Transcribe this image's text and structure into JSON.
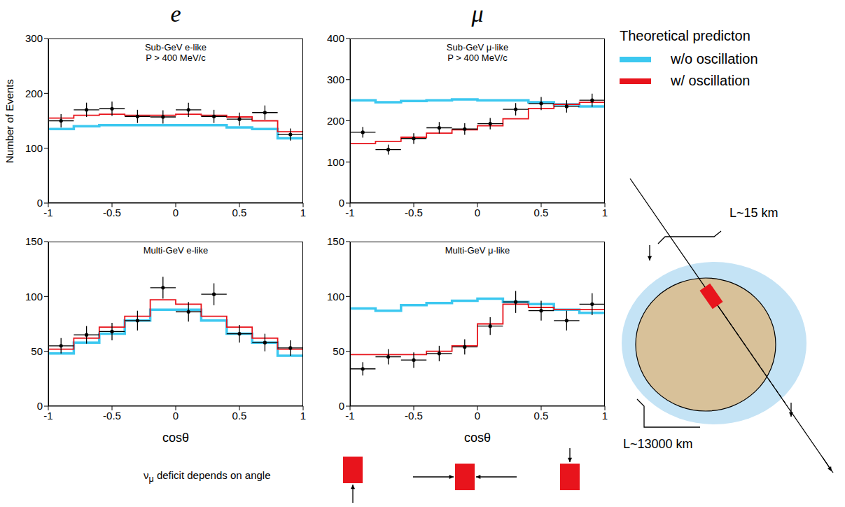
{
  "columns": [
    "e",
    "μ"
  ],
  "legend_title": "Theoretical predicton",
  "chart_data": [
    {
      "type": "step",
      "title": "Sub-GeV e-like",
      "subtitle": "P > 400 MeV/c",
      "y_label": "Number of Events",
      "bins": [
        -1,
        -0.8,
        -0.6,
        -0.4,
        -0.2,
        0,
        0.2,
        0.4,
        0.6,
        0.8,
        1
      ],
      "xlim": [
        -1,
        1
      ],
      "xticks": [
        -1,
        -0.5,
        0,
        0.5,
        1
      ],
      "ylim": [
        0,
        300
      ],
      "yticks": [
        0,
        100,
        200,
        300
      ],
      "data_points": {
        "color": "#000000",
        "values": [
          150,
          170,
          172,
          158,
          157,
          170,
          158,
          153,
          165,
          125
        ],
        "errors": [
          12,
          13,
          13,
          12,
          12,
          13,
          12,
          12,
          13,
          11
        ]
      },
      "series": [
        {
          "name": "w/o oscillation",
          "color": "#3cc8f0",
          "values": [
            135,
            140,
            142,
            142,
            142,
            142,
            142,
            138,
            135,
            118
          ]
        },
        {
          "name": "w/ oscillation",
          "color": "#e8141c",
          "values": [
            155,
            160,
            162,
            160,
            160,
            162,
            160,
            157,
            150,
            130
          ]
        }
      ]
    },
    {
      "type": "step",
      "title": "Sub-GeV μ-like",
      "subtitle": "P > 400 MeV/c",
      "bins": [
        -1,
        -0.8,
        -0.6,
        -0.4,
        -0.2,
        0,
        0.2,
        0.4,
        0.6,
        0.8,
        1
      ],
      "xlim": [
        -1,
        1
      ],
      "xticks": [
        -1,
        -0.5,
        0,
        0.5,
        1
      ],
      "ylim": [
        0,
        400
      ],
      "yticks": [
        0,
        100,
        200,
        300,
        400
      ],
      "data_points": {
        "color": "#000000",
        "values": [
          172,
          130,
          157,
          183,
          180,
          193,
          228,
          242,
          235,
          250
        ],
        "errors": [
          13,
          12,
          13,
          14,
          14,
          14,
          15,
          16,
          15,
          16
        ]
      },
      "series": [
        {
          "name": "w/o oscillation",
          "color": "#3cc8f0",
          "values": [
            250,
            245,
            248,
            250,
            252,
            250,
            250,
            245,
            240,
            235
          ]
        },
        {
          "name": "w/ oscillation",
          "color": "#e8141c",
          "values": [
            145,
            150,
            160,
            170,
            178,
            188,
            205,
            230,
            240,
            245
          ]
        }
      ]
    },
    {
      "type": "step",
      "title": "Multi-GeV e-like",
      "x_label": "cosθ",
      "bins": [
        -1,
        -0.8,
        -0.6,
        -0.4,
        -0.2,
        0,
        0.2,
        0.4,
        0.6,
        0.8,
        1
      ],
      "xlim": [
        -1,
        1
      ],
      "xticks": [
        -1,
        -0.5,
        0,
        0.5,
        1
      ],
      "ylim": [
        0,
        150
      ],
      "yticks": [
        0,
        50,
        100,
        150
      ],
      "data_points": {
        "color": "#000000",
        "values": [
          55,
          65,
          68,
          78,
          108,
          86,
          102,
          66,
          58,
          53
        ],
        "errors": [
          7,
          8,
          8,
          9,
          10,
          9,
          10,
          8,
          8,
          7
        ]
      },
      "series": [
        {
          "name": "w/o oscillation",
          "color": "#3cc8f0",
          "values": [
            48,
            58,
            66,
            78,
            88,
            88,
            78,
            66,
            58,
            46
          ]
        },
        {
          "name": "w/ oscillation",
          "color": "#e8141c",
          "values": [
            52,
            62,
            72,
            82,
            97,
            93,
            82,
            72,
            62,
            52
          ]
        }
      ]
    },
    {
      "type": "step",
      "title": "Multi-GeV μ-like",
      "x_label": "cosθ",
      "bins": [
        -1,
        -0.8,
        -0.6,
        -0.4,
        -0.2,
        0,
        0.2,
        0.4,
        0.6,
        0.8,
        1
      ],
      "xlim": [
        -1,
        1
      ],
      "xticks": [
        -1,
        -0.5,
        0,
        0.5,
        1
      ],
      "ylim": [
        0,
        150
      ],
      "yticks": [
        0,
        50,
        100,
        150
      ],
      "data_points": {
        "color": "#000000",
        "values": [
          34,
          45,
          42,
          48,
          54,
          73,
          95,
          87,
          78,
          93
        ],
        "errors": [
          6,
          7,
          7,
          7,
          7,
          8,
          10,
          9,
          9,
          10
        ]
      },
      "series": [
        {
          "name": "w/o oscillation",
          "color": "#3cc8f0",
          "values": [
            89,
            87,
            92,
            94,
            96,
            98,
            95,
            93,
            88,
            85
          ]
        },
        {
          "name": "w/ oscillation",
          "color": "#e8141c",
          "values": [
            47,
            47,
            47,
            50,
            55,
            75,
            93,
            90,
            88,
            88
          ]
        }
      ]
    }
  ],
  "diagram": {
    "short_path": "L~15 km",
    "long_path": "L~13000 km"
  },
  "note": {
    "symbol": "ν",
    "subscript": "μ",
    "text": "deficit depends on angle"
  }
}
